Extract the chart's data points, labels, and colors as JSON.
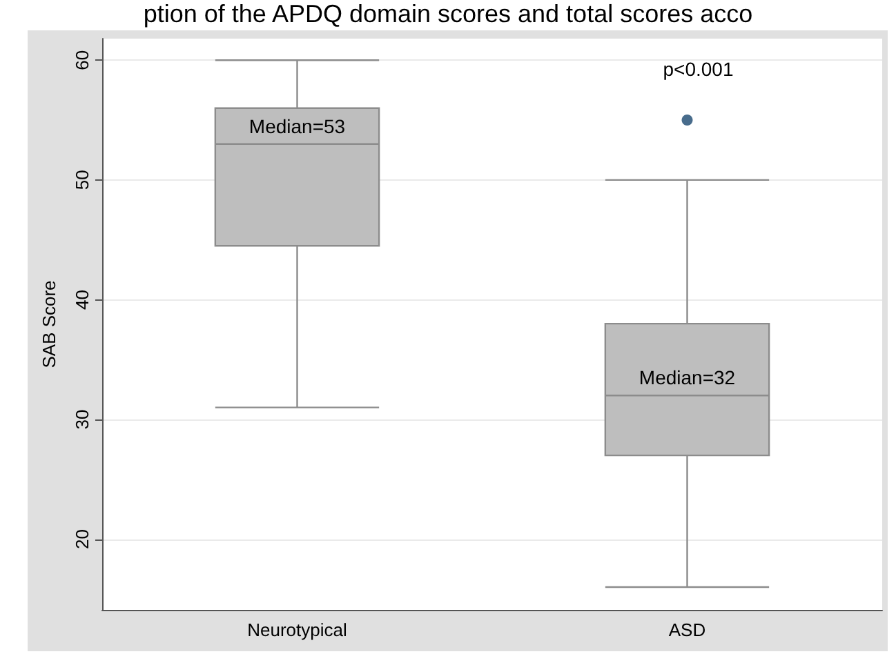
{
  "chart_data": {
    "type": "box",
    "title": "ption of the APDQ domain scores and total scores acco",
    "ylabel": "SAB Score",
    "categories": [
      "Neurotypical",
      "ASD"
    ],
    "boxes": [
      {
        "low": 31,
        "q1": 44.5,
        "median": 53,
        "q3": 56,
        "high": 60
      },
      {
        "low": 16,
        "q1": 27,
        "median": 32,
        "q3": 38,
        "high": 50
      }
    ],
    "color": "#bebebe",
    "series": [
      {
        "type": "scatter",
        "x": [
          "ASD"
        ],
        "values": [
          55
        ],
        "color": "#1a476f"
      }
    ],
    "ylim": [
      14.1,
      61.8
    ],
    "yticks": [
      20,
      30,
      40,
      50,
      60
    ],
    "grid": "y",
    "annotations": [
      "p<0.001",
      {
        "text": "Median=53",
        "x": "Neurotypical",
        "y": 53
      },
      {
        "text": "Median=32",
        "x": "ASD",
        "y": 32
      }
    ]
  }
}
